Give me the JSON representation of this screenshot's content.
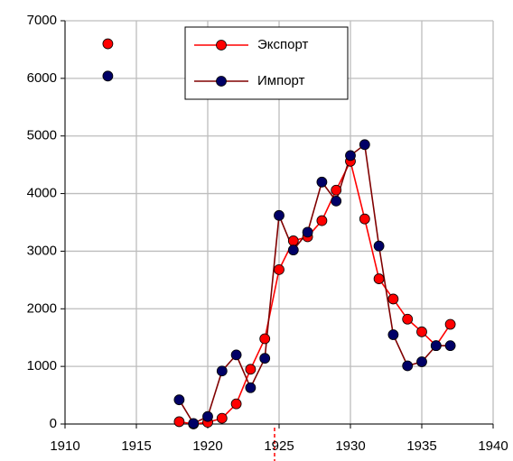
{
  "chart_data": {
    "type": "line",
    "x": [
      1913,
      1914,
      1915,
      1916,
      1917,
      1918,
      1919,
      1920,
      1921,
      1922,
      1923,
      1924,
      1925,
      1926,
      1927,
      1928,
      1929,
      1930,
      1931,
      1932,
      1933,
      1934,
      1935,
      1936,
      1937
    ],
    "series": [
      {
        "name": "Экспорт",
        "color": "#ff0000",
        "marker_color": "#ff0000",
        "values": [
          6600,
          null,
          null,
          null,
          null,
          40,
          0,
          30,
          100,
          350,
          950,
          1480,
          2680,
          3180,
          3250,
          3530,
          4060,
          4560,
          3560,
          2520,
          2170,
          1820,
          1600,
          1360,
          1730
        ]
      },
      {
        "name": "Импорт",
        "color": "#800000",
        "marker_color": "#000066",
        "values": [
          6040,
          null,
          null,
          null,
          null,
          420,
          10,
          130,
          920,
          1200,
          630,
          1140,
          3620,
          3020,
          3330,
          4200,
          3870,
          4660,
          4850,
          3090,
          1550,
          1010,
          1080,
          1360,
          1360
        ]
      }
    ],
    "xlim": [
      1910,
      1940
    ],
    "xticks": [
      1910,
      1915,
      1920,
      1925,
      1930,
      1935,
      1940
    ],
    "ylim": [
      0,
      7000
    ],
    "yticks": [
      0,
      1000,
      2000,
      3000,
      4000,
      5000,
      6000,
      7000
    ],
    "grid": true,
    "legend": "top"
  }
}
